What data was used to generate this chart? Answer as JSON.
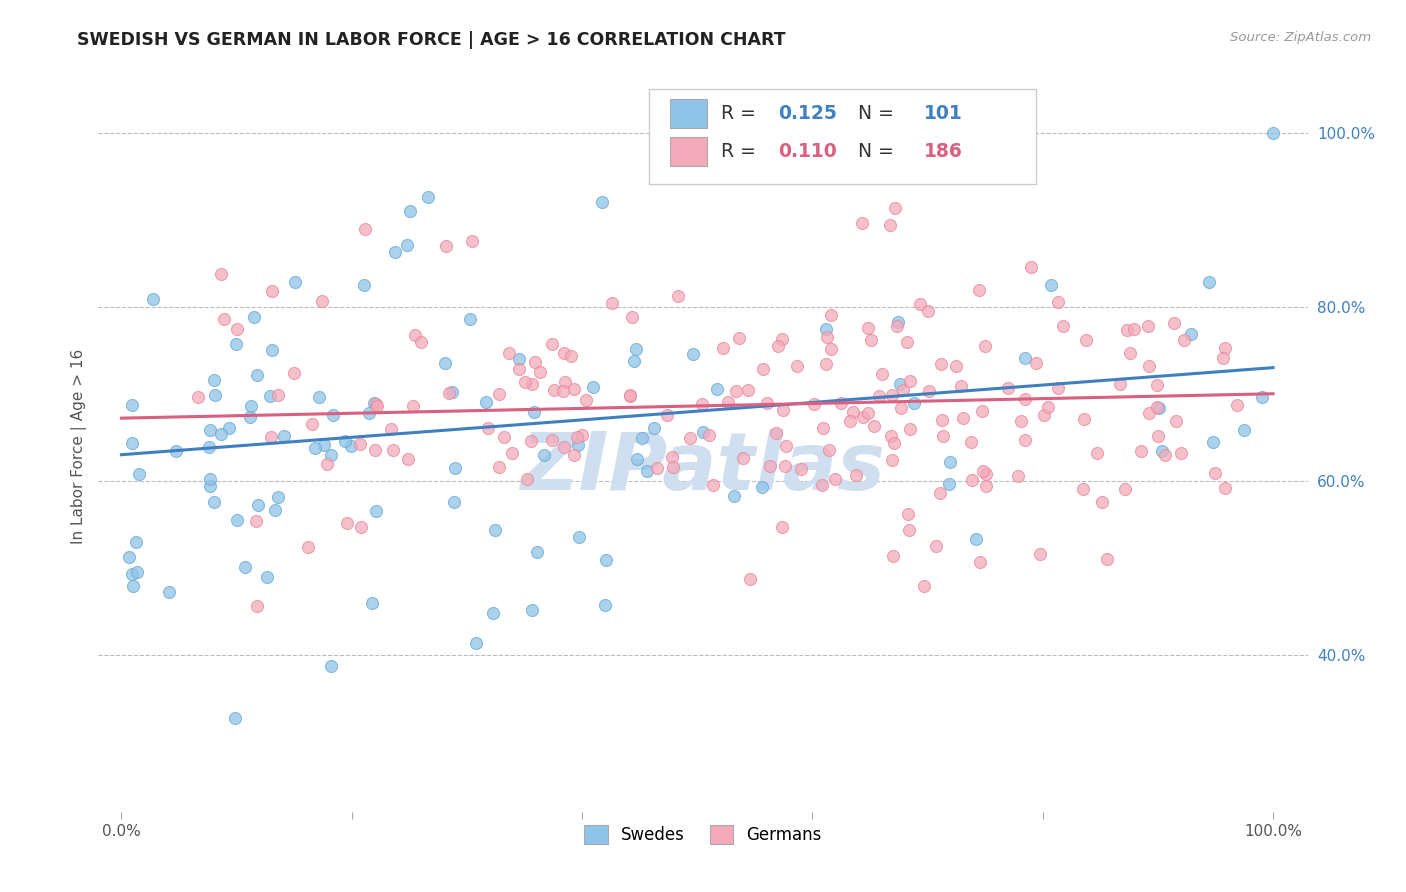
{
  "title": "SWEDISH VS GERMAN IN LABOR FORCE | AGE > 16 CORRELATION CHART",
  "source_text": "Source: ZipAtlas.com",
  "ylabel": "In Labor Force | Age > 16",
  "xlim": [
    -0.02,
    1.03
  ],
  "ylim": [
    0.22,
    1.06
  ],
  "x_ticks": [
    0.0,
    0.2,
    0.4,
    0.6,
    0.8,
    1.0
  ],
  "x_tick_labels": [
    "0.0%",
    "",
    "",
    "",
    "",
    "100.0%"
  ],
  "y_ticks_right": [
    0.4,
    0.6,
    0.8,
    1.0
  ],
  "y_tick_labels_right": [
    "40.0%",
    "60.0%",
    "80.0%",
    "100.0%"
  ],
  "swede_color": "#8EC4E8",
  "german_color": "#F4AABB",
  "swede_edge_color": "#6AAAD4",
  "german_edge_color": "#E88898",
  "swede_line_color": "#4080C0",
  "german_line_color": "#D86080",
  "R_swede": 0.125,
  "N_swede": 101,
  "R_german": 0.11,
  "N_german": 186,
  "background_color": "#FFFFFF",
  "grid_color": "#BBBBBB",
  "title_color": "#222222",
  "watermark_color": "#D0DFF0",
  "legend_swede_label": "Swedes",
  "legend_german_label": "Germans",
  "swede_trend_start": 0.63,
  "swede_trend_end": 0.73,
  "german_trend_start": 0.672,
  "german_trend_end": 0.7,
  "tick_color": "#4080C0",
  "label_color": "#555555"
}
